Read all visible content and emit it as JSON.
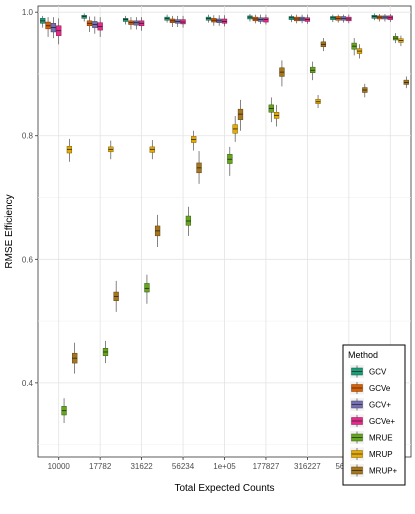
{
  "chart_data": {
    "type": "boxplot",
    "xlabel": "Total Expected Counts",
    "ylabel": "RMSE Efficiency",
    "categories": [
      "10000",
      "17782",
      "31622",
      "56234",
      "1e+05",
      "177827",
      "316227",
      "562341",
      "999999"
    ],
    "ylim": [
      0.28,
      1.01
    ],
    "yticks": [
      0.4,
      0.6,
      0.8,
      1.0
    ],
    "ytick_labels": [
      "0.4",
      "0.6",
      "0.8",
      "1.0"
    ],
    "grid": true,
    "legend": {
      "title": "Method",
      "position": "bottom-right"
    },
    "series": [
      {
        "name": "GCV",
        "color": "#1b9e77",
        "stats": [
          [
            0.975,
            0.982,
            0.986,
            0.99,
            0.994
          ],
          [
            0.985,
            0.99,
            0.993,
            0.995,
            0.998
          ],
          [
            0.98,
            0.985,
            0.988,
            0.99,
            0.994
          ],
          [
            0.983,
            0.987,
            0.99,
            0.992,
            0.996
          ],
          [
            0.983,
            0.987,
            0.99,
            0.992,
            0.996
          ],
          [
            0.985,
            0.989,
            0.992,
            0.994,
            0.997
          ],
          [
            0.984,
            0.988,
            0.991,
            0.993,
            0.996
          ],
          [
            0.984,
            0.988,
            0.991,
            0.993,
            0.996
          ],
          [
            0.987,
            0.99,
            0.993,
            0.995,
            0.998
          ]
        ]
      },
      {
        "name": "GCVe",
        "color": "#d95f02",
        "stats": [
          [
            0.96,
            0.973,
            0.978,
            0.984,
            0.992
          ],
          [
            0.968,
            0.978,
            0.982,
            0.986,
            0.993
          ],
          [
            0.972,
            0.98,
            0.983,
            0.986,
            0.992
          ],
          [
            0.976,
            0.983,
            0.986,
            0.989,
            0.994
          ],
          [
            0.978,
            0.984,
            0.987,
            0.99,
            0.995
          ],
          [
            0.982,
            0.986,
            0.989,
            0.992,
            0.996
          ],
          [
            0.982,
            0.986,
            0.989,
            0.992,
            0.996
          ],
          [
            0.983,
            0.987,
            0.99,
            0.993,
            0.996
          ],
          [
            0.985,
            0.989,
            0.992,
            0.994,
            0.997
          ]
        ]
      },
      {
        "name": "GCV+",
        "color": "#7570b3",
        "stats": [
          [
            0.958,
            0.968,
            0.975,
            0.982,
            0.992
          ],
          [
            0.965,
            0.975,
            0.98,
            0.985,
            0.993
          ],
          [
            0.972,
            0.979,
            0.983,
            0.986,
            0.992
          ],
          [
            0.976,
            0.982,
            0.985,
            0.988,
            0.994
          ],
          [
            0.978,
            0.983,
            0.986,
            0.989,
            0.995
          ],
          [
            0.981,
            0.985,
            0.988,
            0.991,
            0.996
          ],
          [
            0.982,
            0.986,
            0.989,
            0.992,
            0.996
          ],
          [
            0.983,
            0.987,
            0.99,
            0.993,
            0.996
          ],
          [
            0.985,
            0.989,
            0.992,
            0.994,
            0.997
          ]
        ]
      },
      {
        "name": "GCVe+",
        "color": "#e7298a",
        "stats": [
          [
            0.948,
            0.962,
            0.97,
            0.978,
            0.99
          ],
          [
            0.96,
            0.971,
            0.977,
            0.983,
            0.992
          ],
          [
            0.97,
            0.978,
            0.982,
            0.986,
            0.992
          ],
          [
            0.975,
            0.981,
            0.984,
            0.988,
            0.994
          ],
          [
            0.977,
            0.982,
            0.985,
            0.989,
            0.995
          ],
          [
            0.98,
            0.984,
            0.988,
            0.991,
            0.996
          ],
          [
            0.981,
            0.985,
            0.988,
            0.991,
            0.996
          ],
          [
            0.982,
            0.986,
            0.989,
            0.992,
            0.996
          ],
          [
            0.984,
            0.988,
            0.991,
            0.994,
            0.997
          ]
        ]
      },
      {
        "name": "MRUE",
        "color": "#66a61e",
        "stats": [
          [
            0.335,
            0.348,
            0.355,
            0.362,
            0.375
          ],
          [
            0.432,
            0.444,
            0.45,
            0.456,
            0.468
          ],
          [
            0.528,
            0.547,
            0.553,
            0.561,
            0.575
          ],
          [
            0.638,
            0.655,
            0.662,
            0.67,
            0.685
          ],
          [
            0.735,
            0.755,
            0.762,
            0.77,
            0.782
          ],
          [
            0.822,
            0.838,
            0.844,
            0.85,
            0.862
          ],
          [
            0.89,
            0.902,
            0.906,
            0.911,
            0.92
          ],
          [
            0.93,
            0.94,
            0.945,
            0.95,
            0.958
          ],
          [
            0.95,
            0.955,
            0.958,
            0.961,
            0.966
          ]
        ]
      },
      {
        "name": "MRUP",
        "color": "#e6ab02",
        "stats": [
          [
            0.758,
            0.772,
            0.778,
            0.783,
            0.795
          ],
          [
            0.762,
            0.774,
            0.778,
            0.782,
            0.792
          ],
          [
            0.762,
            0.773,
            0.778,
            0.782,
            0.793
          ],
          [
            0.776,
            0.789,
            0.794,
            0.799,
            0.808
          ],
          [
            0.79,
            0.804,
            0.811,
            0.818,
            0.832
          ],
          [
            0.815,
            0.828,
            0.833,
            0.838,
            0.85
          ],
          [
            0.845,
            0.852,
            0.855,
            0.859,
            0.866
          ],
          [
            0.925,
            0.933,
            0.937,
            0.941,
            0.948
          ],
          [
            0.945,
            0.951,
            0.954,
            0.957,
            0.962
          ]
        ]
      },
      {
        "name": "MRUP+",
        "color": "#a6761d",
        "stats": [
          [
            0.415,
            0.432,
            0.44,
            0.448,
            0.465
          ],
          [
            0.515,
            0.533,
            0.54,
            0.547,
            0.565
          ],
          [
            0.62,
            0.638,
            0.646,
            0.654,
            0.672
          ],
          [
            0.722,
            0.74,
            0.748,
            0.756,
            0.775
          ],
          [
            0.808,
            0.826,
            0.835,
            0.843,
            0.858
          ],
          [
            0.88,
            0.896,
            0.903,
            0.91,
            0.922
          ],
          [
            0.937,
            0.944,
            0.948,
            0.952,
            0.958
          ],
          [
            0.862,
            0.87,
            0.874,
            0.878,
            0.884
          ],
          [
            0.877,
            0.883,
            0.886,
            0.89,
            0.896
          ]
        ]
      }
    ]
  }
}
